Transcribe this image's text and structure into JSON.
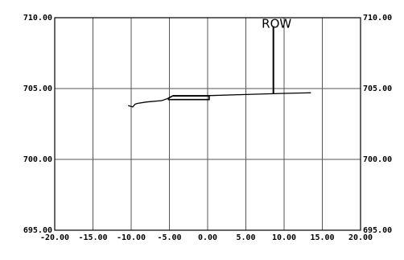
{
  "chart_data": {
    "type": "line",
    "title": "",
    "xlabel": "",
    "ylabel": "",
    "xlim": [
      -20,
      20
    ],
    "ylim": [
      695,
      710
    ],
    "grid": true,
    "x_ticks": [
      -20,
      -15,
      -10,
      -5,
      0,
      5,
      10,
      15,
      20
    ],
    "x_tick_labels": [
      "-20.00",
      "-15.00",
      "-10.00",
      "-5.00",
      "0.00",
      "5.00",
      "10.00",
      "15.00",
      "20.00"
    ],
    "y_ticks": [
      695,
      700,
      705,
      710
    ],
    "y_tick_labels": [
      "695.00",
      "700.00",
      "705.00",
      "710.00"
    ],
    "series": [
      {
        "x": [
          -10.4,
          -9.8,
          -9.5,
          -9.2,
          -8.0,
          -6.0,
          -5.2,
          -4.5,
          0.0,
          5.0,
          10.0,
          13.5
        ],
        "y": [
          703.8,
          703.7,
          703.9,
          703.95,
          704.05,
          704.15,
          704.3,
          704.5,
          704.5,
          704.58,
          704.66,
          704.7
        ]
      },
      {
        "x": [
          -5.2,
          -4.6,
          0.2,
          0.2,
          -5.2
        ],
        "y": [
          704.3,
          704.48,
          704.48,
          704.22,
          704.22
        ]
      }
    ],
    "annotations": [
      {
        "text": "ROW",
        "x": 8.6,
        "y_from": 704.6,
        "y_to": 709.4
      }
    ]
  }
}
